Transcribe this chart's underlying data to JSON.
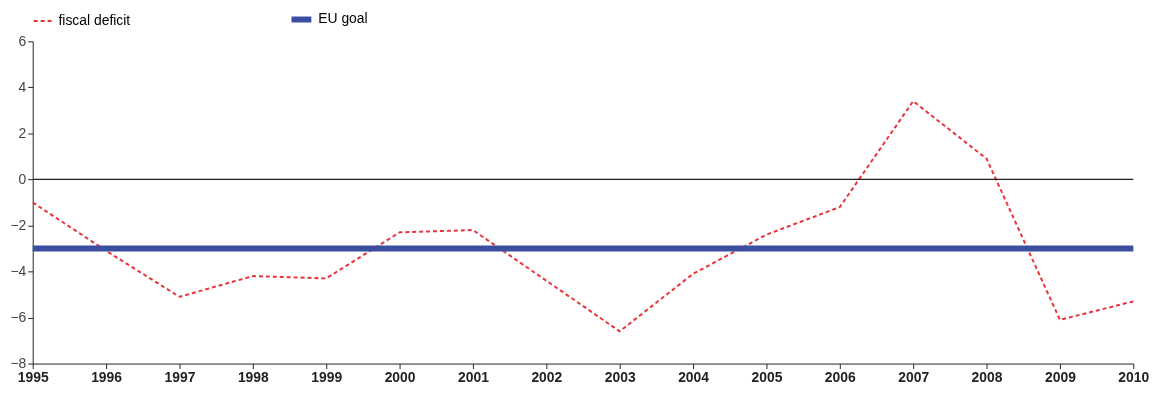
{
  "chart_data": {
    "type": "line",
    "x": [
      1995,
      1996,
      1997,
      1998,
      1999,
      2000,
      2001,
      2002,
      2003,
      2004,
      2005,
      2006,
      2007,
      2008,
      2009,
      2010
    ],
    "series": [
      {
        "name": "fiscal deficit",
        "color": "#e8333a",
        "line_style": "dashed",
        "values": [
          -1.0,
          -3.1,
          -5.1,
          -4.2,
          -4.3,
          -2.3,
          -2.2,
          -4.4,
          -6.6,
          -4.1,
          -2.4,
          -1.2,
          3.4,
          0.9,
          -6.1,
          -5.3
        ]
      },
      {
        "name": "EU goal",
        "color": "#3a4fa0",
        "line_style": "solid",
        "values": [
          -3,
          -3,
          -3,
          -3,
          -3,
          -3,
          -3,
          -3,
          -3,
          -3,
          -3,
          -3,
          -3,
          -3,
          -3,
          -3
        ]
      }
    ],
    "xlim": [
      1995,
      2010
    ],
    "xticks": [
      1995,
      1996,
      1997,
      1998,
      1999,
      2000,
      2001,
      2002,
      2003,
      2004,
      2005,
      2006,
      2007,
      2008,
      2009,
      2010
    ],
    "ylim": [
      -8,
      6
    ],
    "yticks": [
      -8,
      -6,
      -4,
      -2,
      0,
      2,
      4,
      6
    ],
    "ref_lines": [
      {
        "axis": "y",
        "value": 0,
        "color": "#222222"
      }
    ],
    "grid": false,
    "legend": "top left",
    "marker": "none"
  }
}
